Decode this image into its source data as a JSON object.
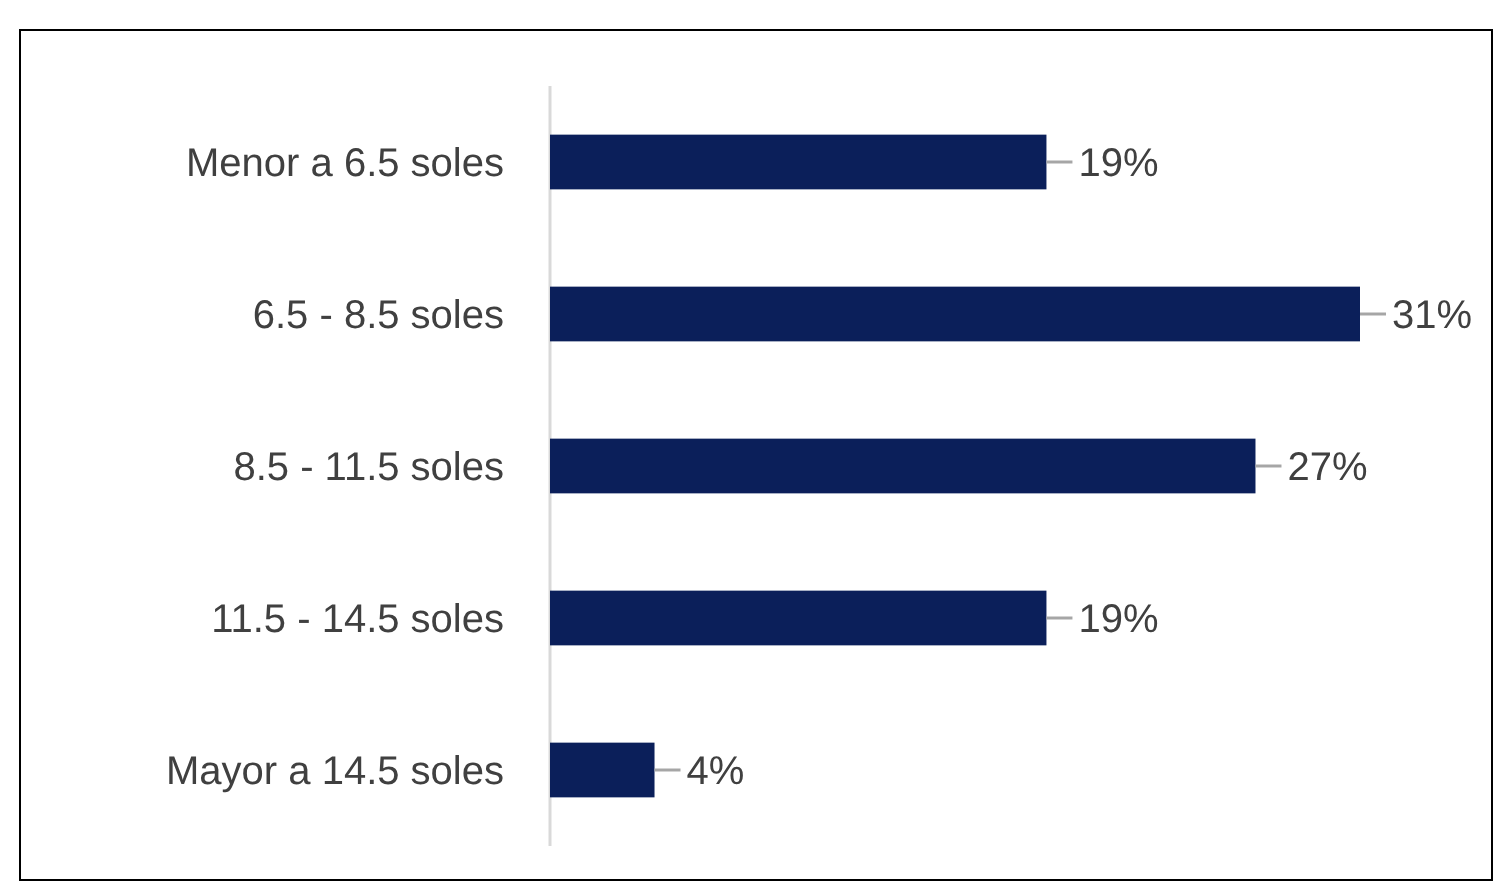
{
  "chart_data": {
    "type": "bar",
    "orientation": "horizontal",
    "categories": [
      "Menor a 6.5 soles",
      "6.5 - 8.5 soles",
      "8.5 - 11.5 soles",
      "11.5 - 14.5 soles",
      "Mayor a 14.5 soles"
    ],
    "values": [
      19,
      31,
      27,
      19,
      4
    ],
    "value_labels": [
      "19%",
      "31%",
      "27%",
      "19%",
      "4%"
    ],
    "color": "#0b1f5a"
  }
}
